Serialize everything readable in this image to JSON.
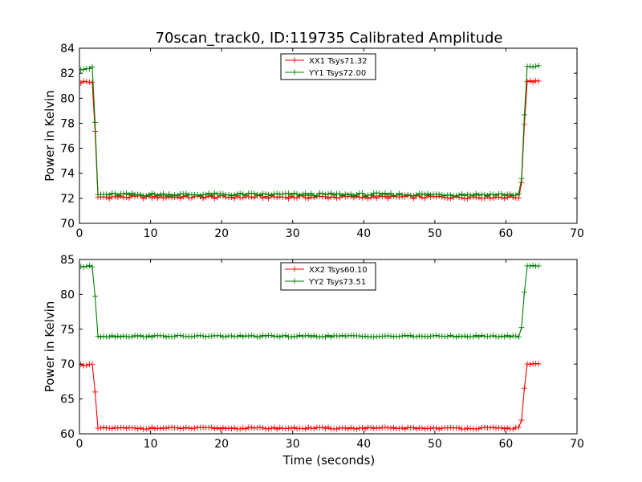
{
  "figure": {
    "title": "70scan_track0, ID:119735 Calibrated Amplitude",
    "xlabel": "Time (seconds)"
  },
  "chart_data": [
    {
      "type": "line",
      "ylabel": "Power in Kelvin",
      "xlim": [
        0,
        70
      ],
      "ylim": [
        70,
        84
      ],
      "xticks": [
        0,
        10,
        20,
        30,
        40,
        50,
        60,
        70
      ],
      "yticks": [
        70,
        72,
        74,
        76,
        78,
        80,
        82,
        84
      ],
      "grid": false,
      "legend_position": "top-center",
      "series": [
        {
          "name": "XX1 Tsys71.32",
          "color": "#ff0000",
          "marker": "+",
          "plateaus": {
            "start_level": 81.3,
            "mid_level": 72.1,
            "end_level": 81.4,
            "t_start": 0.2,
            "t_end": 64.6,
            "step": 0.4,
            "drop_begin": 1.9,
            "drop_end": 2.6,
            "rise_begin": 62.1,
            "rise_end": 62.9
          }
        },
        {
          "name": "YY1 Tsys72.00",
          "color": "#008000",
          "marker": "+",
          "plateaus": {
            "start_level": 82.4,
            "mid_level": 72.3,
            "end_level": 82.5,
            "t_start": 0.2,
            "t_end": 64.6,
            "step": 0.4,
            "drop_begin": 1.9,
            "drop_end": 2.6,
            "rise_begin": 62.1,
            "rise_end": 62.9
          }
        }
      ]
    },
    {
      "type": "line",
      "ylabel": "Power in Kelvin",
      "xlabel": "Time (seconds)",
      "xlim": [
        0,
        70
      ],
      "ylim": [
        60,
        85
      ],
      "xticks": [
        0,
        10,
        20,
        30,
        40,
        50,
        60,
        70
      ],
      "yticks": [
        60,
        65,
        70,
        75,
        80,
        85
      ],
      "grid": false,
      "legend_position": "top-center",
      "series": [
        {
          "name": "XX2 Tsys60.10",
          "color": "#ff0000",
          "marker": "+",
          "plateaus": {
            "start_level": 69.9,
            "mid_level": 60.8,
            "end_level": 70.0,
            "t_start": 0.2,
            "t_end": 64.6,
            "step": 0.4,
            "drop_begin": 1.9,
            "drop_end": 2.6,
            "rise_begin": 62.1,
            "rise_end": 62.9
          }
        },
        {
          "name": "YY2 Tsys73.51",
          "color": "#008000",
          "marker": "+",
          "plateaus": {
            "start_level": 84.0,
            "mid_level": 74.0,
            "end_level": 84.1,
            "t_start": 0.2,
            "t_end": 64.6,
            "step": 0.4,
            "drop_begin": 1.9,
            "drop_end": 2.6,
            "rise_begin": 62.1,
            "rise_end": 62.9
          }
        }
      ]
    }
  ]
}
